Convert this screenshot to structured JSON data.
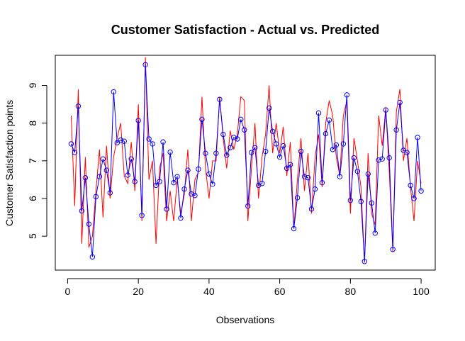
{
  "chart_data": {
    "type": "line",
    "title": "Customer Satisfaction - Actual vs. Predicted",
    "xlabel": "Observations",
    "ylabel": "Customer Satisfaction points",
    "xlim": [
      -3.5,
      104
    ],
    "ylim": [
      4.1,
      9.8
    ],
    "x_ticks": [
      0,
      20,
      40,
      60,
      80,
      100
    ],
    "y_ticks": [
      5,
      6,
      7,
      8,
      9
    ],
    "x_tick_labels": [
      "0",
      "20",
      "40",
      "60",
      "80",
      "100"
    ],
    "y_tick_labels": [
      "5",
      "6",
      "7",
      "8",
      "9"
    ],
    "grid": false,
    "colors": {
      "actual": "#0000ff",
      "predicted": "#ff0000"
    },
    "series": [
      {
        "role": "actual",
        "marker": "open-circle",
        "x": [
          1,
          2,
          3,
          4,
          5,
          6,
          7,
          8,
          9,
          10,
          11,
          12,
          13,
          14,
          15,
          16,
          17,
          18,
          19,
          20,
          21,
          22,
          23,
          24,
          25,
          26,
          27,
          28,
          29,
          30,
          31,
          32,
          33,
          34,
          35,
          36,
          37,
          38,
          39,
          40,
          41,
          42,
          43,
          44,
          45,
          46,
          47,
          48,
          49,
          50,
          51,
          52,
          53,
          54,
          55,
          56,
          57,
          58,
          59,
          60,
          61,
          62,
          63,
          64,
          65,
          66,
          67,
          68,
          69,
          70,
          71,
          72,
          73,
          74,
          75,
          76,
          77,
          78,
          79,
          80,
          81,
          82,
          83,
          84,
          85,
          86,
          87,
          88,
          89,
          90,
          91,
          92,
          93,
          94,
          95,
          96,
          97,
          98,
          99,
          100
        ],
        "values": [
          7.45,
          7.22,
          8.45,
          5.67,
          6.55,
          5.32,
          4.45,
          6.05,
          6.58,
          7.05,
          6.75,
          6.15,
          8.83,
          7.48,
          7.55,
          7.52,
          6.62,
          7.05,
          6.45,
          8.07,
          5.55,
          9.55,
          7.58,
          7.45,
          6.35,
          6.45,
          7.5,
          5.72,
          7.23,
          6.42,
          6.58,
          5.48,
          6.25,
          6.75,
          6.12,
          6.08,
          6.78,
          8.1,
          7.2,
          6.65,
          6.38,
          7.2,
          8.63,
          7.7,
          7.15,
          7.35,
          7.62,
          7.58,
          8.1,
          7.82,
          5.8,
          7.22,
          7.35,
          6.35,
          6.4,
          7.25,
          8.4,
          7.78,
          7.45,
          7.1,
          7.4,
          6.8,
          6.9,
          5.2,
          6.02,
          7.25,
          6.58,
          6.55,
          5.72,
          6.25,
          8.27,
          6.42,
          7.72,
          8.08,
          7.3,
          7.42,
          6.58,
          7.45,
          8.75,
          5.95,
          7.08,
          6.72,
          5.92,
          4.33,
          6.65,
          5.88,
          5.08,
          7.02,
          7.05,
          8.35,
          7.08,
          4.65,
          7.82,
          8.55,
          7.28,
          7.22,
          6.35,
          6.0,
          7.62,
          6.2
        ]
      },
      {
        "role": "predicted",
        "marker": "none",
        "x": [
          1,
          2,
          3,
          4,
          5,
          6,
          7,
          8,
          9,
          10,
          11,
          12,
          13,
          14,
          15,
          16,
          17,
          18,
          19,
          20,
          21,
          22,
          23,
          24,
          25,
          26,
          27,
          28,
          29,
          30,
          31,
          32,
          33,
          34,
          35,
          36,
          37,
          38,
          39,
          40,
          41,
          42,
          43,
          44,
          45,
          46,
          47,
          48,
          49,
          50,
          51,
          52,
          53,
          54,
          55,
          56,
          57,
          58,
          59,
          60,
          61,
          62,
          63,
          64,
          65,
          66,
          67,
          68,
          69,
          70,
          71,
          72,
          73,
          74,
          75,
          76,
          77,
          78,
          79,
          80,
          81,
          82,
          83,
          84,
          85,
          86,
          87,
          88,
          89,
          90,
          91,
          92,
          93,
          94,
          95,
          96,
          97,
          98,
          99,
          100
        ],
        "values": [
          8.2,
          5.8,
          8.9,
          4.8,
          7.1,
          4.7,
          5.0,
          6.2,
          7.3,
          5.5,
          7.4,
          6.0,
          7.1,
          7.6,
          8.0,
          6.6,
          6.4,
          7.5,
          6.2,
          8.5,
          5.4,
          9.75,
          6.5,
          7.0,
          4.8,
          6.8,
          7.2,
          5.4,
          6.2,
          5.4,
          6.5,
          5.6,
          6.1,
          7.3,
          5.4,
          6.5,
          6.7,
          8.7,
          6.8,
          6.0,
          7.0,
          7.0,
          8.7,
          7.6,
          6.8,
          7.8,
          7.3,
          7.7,
          8.7,
          8.6,
          5.4,
          6.8,
          8.0,
          6.0,
          7.1,
          7.7,
          9.0,
          7.2,
          8.0,
          7.2,
          7.9,
          6.6,
          7.5,
          5.2,
          6.5,
          7.6,
          6.2,
          7.2,
          5.6,
          7.1,
          7.7,
          6.3,
          8.0,
          8.6,
          8.2,
          7.1,
          6.6,
          8.2,
          8.6,
          5.6,
          7.6,
          7.0,
          6.3,
          4.3,
          7.2,
          5.6,
          5.3,
          8.2,
          7.4,
          8.4,
          6.7,
          4.6,
          8.3,
          8.9,
          7.0,
          7.6,
          6.3,
          5.4,
          7.0,
          6.4
        ]
      }
    ]
  }
}
